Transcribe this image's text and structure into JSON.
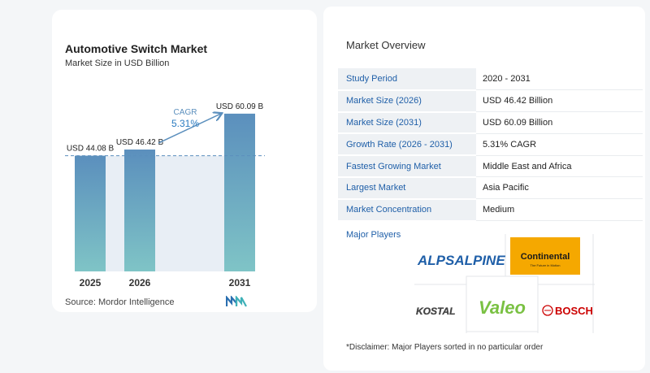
{
  "chart_data": {
    "type": "bar",
    "title": "Automotive Switch Market",
    "subtitle": "Market Size in USD Billion",
    "categories": [
      "2025",
      "2026",
      "2031"
    ],
    "values": [
      44.08,
      46.42,
      60.09
    ],
    "data_labels": [
      "USD 44.08 B",
      "USD 46.42 B",
      "USD 60.09 B"
    ],
    "cagr_label": "CAGR",
    "cagr_value": "5.31%",
    "ylim": [
      0,
      65
    ],
    "reference_line_value": 44.08,
    "grid": false,
    "legend": "none",
    "bar_color_top": "#5b8fbd",
    "bar_color_bottom": "#7fc4c6"
  },
  "source": "Source:  Mordor Intelligence",
  "overview": {
    "title": "Market Overview",
    "rows": [
      {
        "key": "Study Period",
        "value": "2020 - 2031"
      },
      {
        "key": "Market Size (2026)",
        "value": "USD 46.42 Billion"
      },
      {
        "key": "Market Size (2031)",
        "value": "USD 60.09 Billion"
      },
      {
        "key": "Growth Rate (2026 - 2031)",
        "value": "5.31% CAGR"
      },
      {
        "key": "Fastest Growing Market",
        "value": "Middle East and Africa"
      },
      {
        "key": "Largest Market",
        "value": "Asia Pacific"
      },
      {
        "key": "Market Concentration",
        "value": "Medium"
      }
    ]
  },
  "players": {
    "label": "Major Players",
    "alps": "ALPSALPINE",
    "continental": "Continental",
    "continental_tag": "The Future in Motion",
    "kostal": "KOSTAL",
    "valeo": "Valeo",
    "bosch": "BOSCH"
  },
  "disclaimer": "*Disclaimer: Major Players sorted in no particular order",
  "colors": {
    "accent": "#1f5fa8",
    "continental_bg": "#f5a800",
    "valeo_green": "#7ac143"
  }
}
